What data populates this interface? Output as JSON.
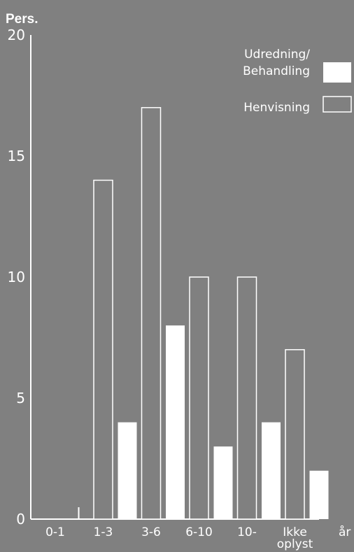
{
  "chart_data": {
    "type": "bar",
    "ylabel": "Pers.",
    "xlabel": "år",
    "ylim": [
      0,
      20
    ],
    "yticks": [
      0,
      5,
      10,
      15,
      20
    ],
    "categories": [
      "0-1",
      "1-3",
      "3-6",
      "6-10",
      "10-",
      "Ikke oplyst"
    ],
    "series": [
      {
        "name": "Henvisning",
        "values": [
          0,
          14,
          17,
          10,
          10,
          7
        ],
        "style": "outline"
      },
      {
        "name": "Udredning/ Behandling",
        "values": [
          0,
          4,
          8,
          3,
          4,
          2
        ],
        "style": "filled"
      }
    ],
    "legend": {
      "placement": "top-right"
    },
    "colors": {
      "background": "#808080",
      "foreground": "#ffffff"
    }
  }
}
